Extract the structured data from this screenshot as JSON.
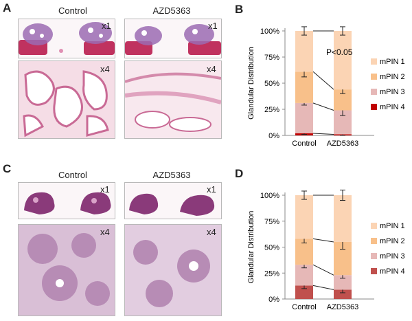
{
  "panels": {
    "A": {
      "letter": "A",
      "col_titles": [
        "Control",
        "AZD5363"
      ],
      "magnifications": [
        "x1",
        "x4"
      ]
    },
    "C": {
      "letter": "C",
      "col_titles": [
        "Control",
        "AZD5363"
      ],
      "magnifications": [
        "x1",
        "x4"
      ]
    }
  },
  "chart_data": [
    {
      "panel": "B",
      "type": "bar",
      "stacked": true,
      "categories": [
        "Control",
        "AZD5363"
      ],
      "ylabel": "Glandular Distribution",
      "yticks": [
        "0%",
        "25%",
        "50%",
        "75%",
        "100%"
      ],
      "ylim": [
        0,
        100
      ],
      "series": [
        {
          "name": "mPIN 4",
          "values": [
            2,
            1
          ],
          "errors": [
            1,
            1
          ]
        },
        {
          "name": "mPIN 3",
          "values": [
            29,
            23
          ],
          "errors": [
            2,
            5
          ]
        },
        {
          "name": "mPIN 2",
          "values": [
            30,
            20
          ],
          "errors": [
            5,
            4
          ]
        },
        {
          "name": "mPIN 1",
          "values": [
            39,
            56
          ],
          "errors": [
            4,
            4
          ]
        }
      ],
      "annotation": "P<0.05",
      "legend_position": "right",
      "colors": [
        "#c00000",
        "#e6b8b7",
        "#f8c08a",
        "#fbd4b4"
      ]
    },
    {
      "panel": "D",
      "type": "bar",
      "stacked": true,
      "categories": [
        "Control",
        "AZD5363"
      ],
      "ylabel": "Glandular Distribution",
      "yticks": [
        "0%",
        "25%",
        "50%",
        "75%",
        "100%"
      ],
      "ylim": [
        0,
        100
      ],
      "series": [
        {
          "name": "mPIN 4",
          "values": [
            13,
            9
          ],
          "errors": [
            3,
            3
          ]
        },
        {
          "name": "mPIN 3",
          "values": [
            20,
            14
          ],
          "errors": [
            3,
            3
          ]
        },
        {
          "name": "mPIN 2",
          "values": [
            25,
            32
          ],
          "errors": [
            4,
            7
          ]
        },
        {
          "name": "mPIN 1",
          "values": [
            42,
            45
          ],
          "errors": [
            4,
            5
          ]
        }
      ],
      "legend_position": "right",
      "colors": [
        "#c0504d",
        "#e6b8b7",
        "#f8c08a",
        "#fbd4b4"
      ]
    }
  ]
}
